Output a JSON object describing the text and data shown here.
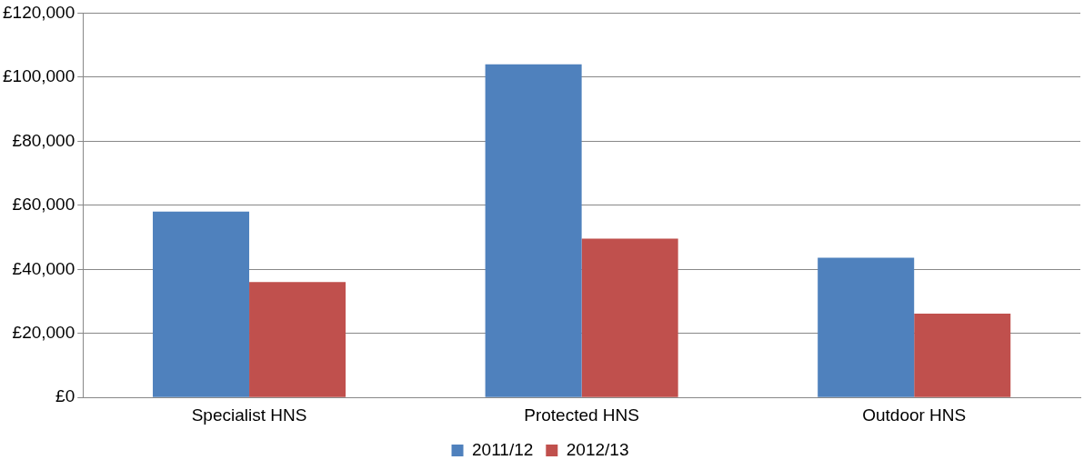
{
  "chart_data": {
    "type": "bar",
    "categories": [
      "Specialist HNS",
      "Protected HNS",
      "Outdoor HNS"
    ],
    "series": [
      {
        "name": "2011/12",
        "color": "#4f81bd",
        "values": [
          58000,
          104000,
          43600
        ]
      },
      {
        "name": "2012/13",
        "color": "#c0504d",
        "values": [
          36000,
          49600,
          26200
        ]
      }
    ],
    "ylim": [
      0,
      120000
    ],
    "yticks": [
      {
        "value": 0,
        "label": "£0"
      },
      {
        "value": 20000,
        "label": "£20,000"
      },
      {
        "value": 40000,
        "label": "£40,000"
      },
      {
        "value": 60000,
        "label": "£60,000"
      },
      {
        "value": 80000,
        "label": "£80,000"
      },
      {
        "value": 100000,
        "label": "£100,000"
      },
      {
        "value": 120000,
        "label": "£120,000"
      }
    ],
    "grid": "y",
    "legend": "bottom"
  }
}
